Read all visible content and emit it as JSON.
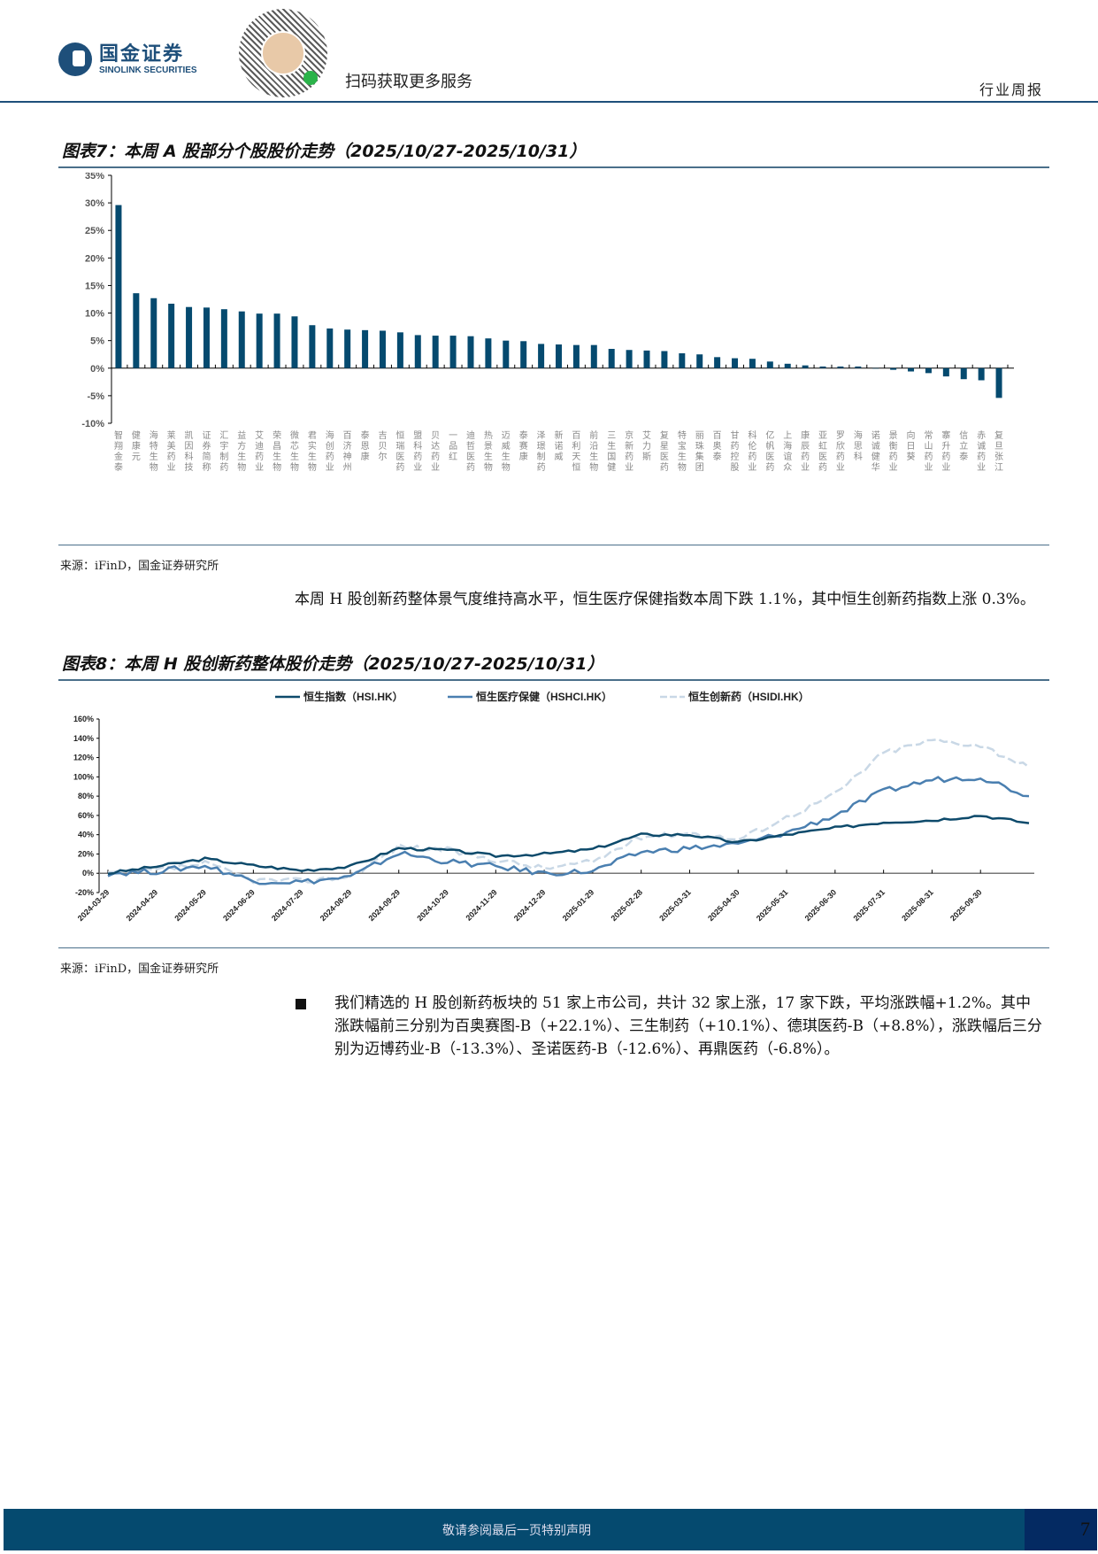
{
  "header": {
    "logo_cn": "国金证券",
    "logo_en": "SINOLINK SECURITIES",
    "scan_text": "扫码获取更多服务",
    "report_type": "行业周报",
    "brand_color": "#1e4f7a"
  },
  "figure7": {
    "title": "图表7：本周 A 股部分个股股价走势（2025/10/27-2025/10/31）",
    "source": "来源：iFinD，国金证券研究所"
  },
  "paragraph1": "本周 H 股创新药整体景气度维持高水平，恒生医疗保健指数本周下跌 1.1%，其中恒生创新药指数上涨 0.3%。",
  "figure8": {
    "title": "图表8：本周 H 股创新药整体股价走势（2025/10/27-2025/10/31）",
    "source": "来源：iFinD，国金证券研究所"
  },
  "bullet1": "我们精选的 H 股创新药板块的 51 家上市公司，共计 32 家上涨，17 家下跌，平均涨跌幅+1.2%。其中涨跌幅前三分别为百奥赛图-B（+22.1%）、三生制药（+10.1%）、德琪医药-B（+8.8%），涨跌幅后三分别为迈博药业-B（-13.3%）、圣诺医药-B（-12.6%）、再鼎医药（-6.8%）。",
  "footer": {
    "disclaimer": "敬请参阅最后一页特别声明",
    "page_number": "7"
  },
  "chart_data": [
    {
      "type": "bar",
      "title": "本周 A 股部分个股股价走势（2025/10/27-2025/10/31）",
      "xlabel": "",
      "ylabel": "",
      "ylim": [
        -0.1,
        0.35
      ],
      "yticks": [
        "35%",
        "30%",
        "25%",
        "20%",
        "15%",
        "10%",
        "5%",
        "0%",
        "-5%",
        "-10%"
      ],
      "bar_color": "#054a6f",
      "grid": false,
      "categories": [
        "智翔金泰",
        "健康元",
        "海特生物",
        "莱美药业",
        "凯因科技",
        "证券简称",
        "汇宇制药",
        "益方生物",
        "艾迪药业",
        "荣昌生物",
        "微芯生物",
        "君实生物",
        "海创药业",
        "百济神州",
        "泰恩康",
        "吉贝尔",
        "恒瑞医药",
        "盟科药业",
        "贝达药业",
        "一品红",
        "迪哲医药",
        "热景生物",
        "迈威生物",
        "泰赛康",
        "泽璟制药",
        "新诺威",
        "百利天恒",
        "前沿生物",
        "三生国健",
        "京新药业",
        "艾力斯",
        "复星医药",
        "特宝生物",
        "丽珠集团",
        "百奥泰",
        "甘药控股",
        "科伦药业",
        "亿帆医药",
        "上海谊众",
        "康辰药业",
        "亚虹医药",
        "罗欣药业",
        "海思科",
        "诺诚健华",
        "景衡药业",
        "向日葵",
        "常山药业",
        "寨升药业",
        "信立泰",
        "赤诚药业",
        "复旦张江"
      ],
      "values": [
        29.6,
        13.6,
        12.7,
        11.7,
        11.1,
        11.0,
        10.7,
        10.3,
        9.9,
        9.9,
        9.4,
        7.8,
        7.2,
        7.0,
        6.9,
        6.8,
        6.5,
        6.0,
        5.9,
        5.9,
        5.8,
        5.4,
        5.0,
        4.9,
        4.4,
        4.3,
        4.2,
        4.2,
        3.5,
        3.3,
        3.2,
        3.1,
        2.7,
        2.5,
        2.0,
        1.8,
        1.7,
        1.2,
        0.8,
        0.5,
        0.3,
        0.3,
        0.3,
        0.0,
        -0.3,
        -0.6,
        -0.9,
        -1.5,
        -2.0,
        -2.2,
        -5.4
      ],
      "unit": "%"
    },
    {
      "type": "line",
      "title": "本周 H 股创新药整体股价走势（2025/10/27-2025/10/31）",
      "ylim": [
        -0.2,
        1.6
      ],
      "yticks": [
        "160%",
        "140%",
        "120%",
        "100%",
        "80%",
        "60%",
        "40%",
        "20%",
        "0%",
        "-20%"
      ],
      "legend_position": "top",
      "grid": false,
      "x": [
        "2024-03-29",
        "2024-04-29",
        "2024-05-29",
        "2024-06-29",
        "2024-07-29",
        "2024-08-29",
        "2024-09-29",
        "2024-10-29",
        "2024-11-29",
        "2024-12-29",
        "2025-01-29",
        "2025-02-28",
        "2025-03-31",
        "2025-04-30",
        "2025-05-31",
        "2025-06-30",
        "2025-07-31",
        "2025-08-31",
        "2025-09-30",
        "2025-10-31"
      ],
      "series": [
        {
          "name": "恒生指数（HSI.HK）",
          "color": "#0d4a6b",
          "style": "solid",
          "values": [
            0,
            7,
            15,
            8,
            3,
            7,
            26,
            24,
            18,
            20,
            25,
            40,
            40,
            32,
            40,
            47,
            53,
            55,
            60,
            52
          ]
        },
        {
          "name": "恒生医疗保健（HSHCI.HK）",
          "color": "#4a7fb0",
          "style": "solid",
          "values": [
            0,
            2,
            8,
            -8,
            -9,
            -4,
            21,
            12,
            7,
            0,
            2,
            22,
            26,
            30,
            42,
            60,
            85,
            97,
            100,
            80
          ]
        },
        {
          "name": "恒生创新药（HSIDI.HK）",
          "color": "#c9d8e6",
          "style": "dashed",
          "values": [
            0,
            3,
            10,
            -7,
            -8,
            -3,
            28,
            24,
            14,
            5,
            12,
            38,
            42,
            35,
            58,
            82,
            125,
            138,
            133,
            110
          ]
        }
      ]
    }
  ]
}
